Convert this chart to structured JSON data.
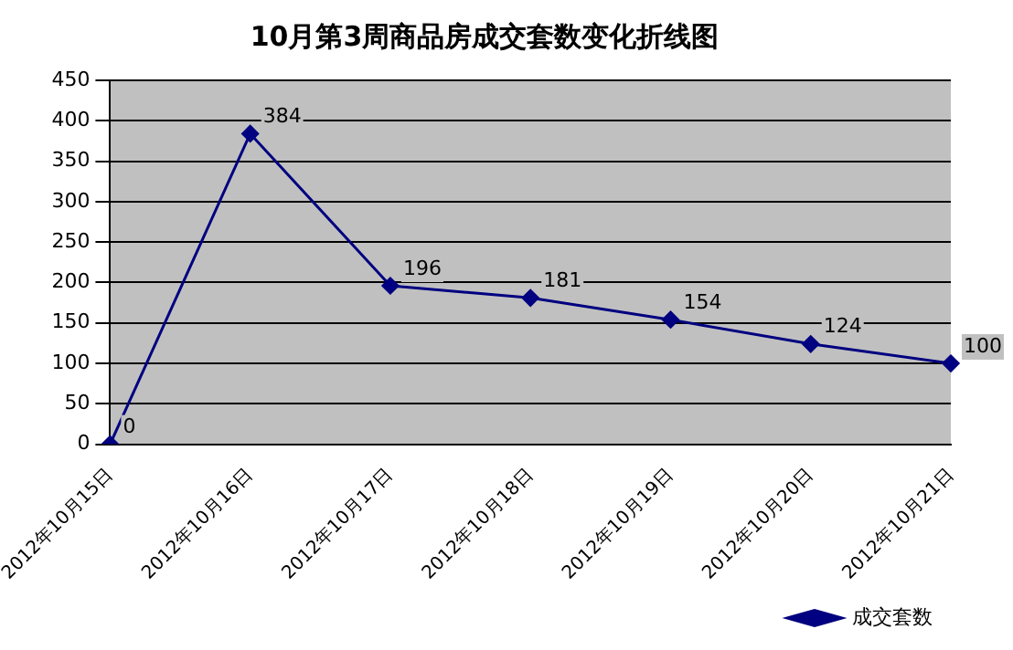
{
  "chart_data": {
    "type": "line",
    "title": "10月第3周商品房成交套数变化折线图",
    "categories": [
      "2012年10月15日",
      "2012年10月16日",
      "2012年10月17日",
      "2012年10月18日",
      "2012年10月19日",
      "2012年10月20日",
      "2012年10月21日"
    ],
    "series": [
      {
        "name": "成交套数",
        "color": "#000080",
        "values": [
          0,
          384,
          196,
          181,
          154,
          124,
          100
        ]
      }
    ],
    "ylim": [
      0,
      450
    ],
    "yticks": [
      0,
      50,
      100,
      150,
      200,
      250,
      300,
      350,
      400,
      450
    ],
    "grid": "y",
    "legend": "bottom right",
    "marker": "diamond",
    "line_style": "solid",
    "data_labels": true
  }
}
